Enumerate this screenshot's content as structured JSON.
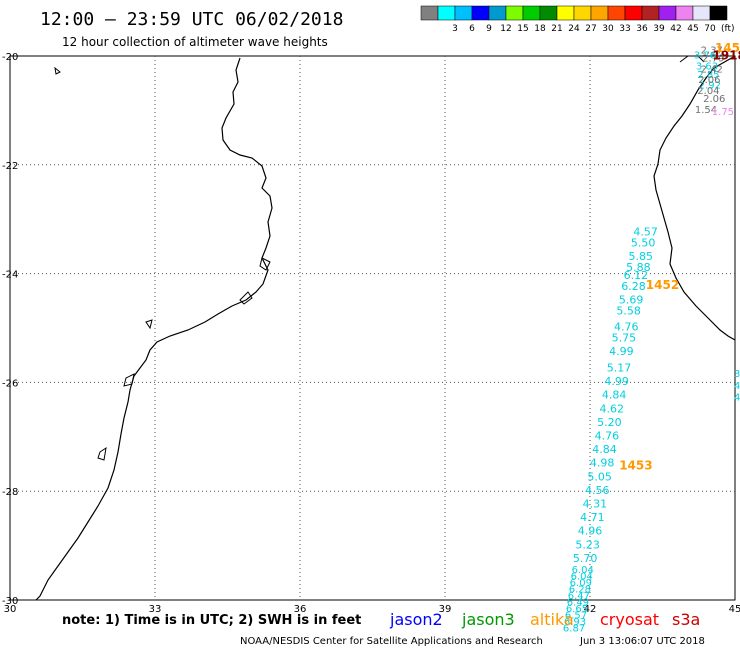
{
  "header": {
    "title": "12:00 – 23:59 UTC 06/02/2018",
    "subtitle": "12 hour collection of altimeter wave heights"
  },
  "colorbar": {
    "unit": "(ft)",
    "swatches": [
      {
        "color": "#808080",
        "label": ""
      },
      {
        "color": "#00ffff",
        "label": "3"
      },
      {
        "color": "#00bfff",
        "label": "6"
      },
      {
        "color": "#0000ff",
        "label": "9"
      },
      {
        "color": "#009acd",
        "label": "12"
      },
      {
        "color": "#7cfc00",
        "label": "15"
      },
      {
        "color": "#00cd00",
        "label": "18"
      },
      {
        "color": "#008b00",
        "label": "21"
      },
      {
        "color": "#ffff00",
        "label": "24"
      },
      {
        "color": "#ffd700",
        "label": "27"
      },
      {
        "color": "#ffa500",
        "label": "30"
      },
      {
        "color": "#ff4500",
        "label": "33"
      },
      {
        "color": "#ff0000",
        "label": "36"
      },
      {
        "color": "#b22222",
        "label": "39"
      },
      {
        "color": "#a020f0",
        "label": "42"
      },
      {
        "color": "#ee82ee",
        "label": "45"
      },
      {
        "color": "#e6e6fa",
        "label": "70"
      },
      {
        "color": "#000000",
        "label": ""
      }
    ]
  },
  "axes": {
    "lon_ticks": [
      "30",
      "33",
      "36",
      "39",
      "42",
      "45"
    ],
    "lat_ticks": [
      "-20",
      "-22",
      "-24",
      "-26",
      "-28",
      "-30"
    ]
  },
  "track_colors": {
    "cyan": "#00d0e0",
    "orange": "#ff9900",
    "gray": "#707070",
    "violet": "#ee82ee",
    "darkred": "#8b0000"
  },
  "tracks": {
    "s3a_south": [
      {
        "lon": 43.15,
        "lat": -23.3,
        "swh": "4.57"
      },
      {
        "lon": 43.1,
        "lat": -23.5,
        "swh": "5.50"
      },
      {
        "lon": 43.05,
        "lat": -23.75,
        "swh": "5.85"
      },
      {
        "lon": 43.0,
        "lat": -23.95,
        "swh": "5.88"
      },
      {
        "lon": 42.95,
        "lat": -24.1,
        "swh": "6.12"
      },
      {
        "lon": 42.9,
        "lat": -24.3,
        "swh": "6.28"
      },
      {
        "lon": 42.85,
        "lat": -24.55,
        "swh": "5.69"
      },
      {
        "lon": 42.8,
        "lat": -24.75,
        "swh": "5.58"
      },
      {
        "lon": 42.75,
        "lat": -25.05,
        "swh": "4.76"
      },
      {
        "lon": 42.7,
        "lat": -25.25,
        "swh": "5.75"
      },
      {
        "lon": 42.65,
        "lat": -25.5,
        "swh": "4.99"
      },
      {
        "lon": 42.6,
        "lat": -25.8,
        "swh": "5.17"
      },
      {
        "lon": 42.55,
        "lat": -26.05,
        "swh": "4.99"
      },
      {
        "lon": 42.5,
        "lat": -26.3,
        "swh": "4.84"
      },
      {
        "lon": 42.45,
        "lat": -26.55,
        "swh": "4.62"
      },
      {
        "lon": 42.4,
        "lat": -26.8,
        "swh": "5.20"
      },
      {
        "lon": 42.35,
        "lat": -27.05,
        "swh": "4.76"
      },
      {
        "lon": 42.3,
        "lat": -27.3,
        "swh": "4.84"
      },
      {
        "lon": 42.25,
        "lat": -27.55,
        "swh": "4.98"
      },
      {
        "lon": 42.2,
        "lat": -27.8,
        "swh": "5.05"
      },
      {
        "lon": 42.15,
        "lat": -28.05,
        "swh": "4.56"
      },
      {
        "lon": 42.1,
        "lat": -28.3,
        "swh": "4.31"
      },
      {
        "lon": 42.05,
        "lat": -28.55,
        "swh": "4.71"
      },
      {
        "lon": 42.0,
        "lat": -28.8,
        "swh": "4.96"
      },
      {
        "lon": 41.95,
        "lat": -29.05,
        "swh": "5.23"
      },
      {
        "lon": 41.9,
        "lat": -29.3,
        "swh": "5.70"
      }
    ],
    "s3a_dense": [
      {
        "lon": 41.85,
        "lat": -29.5,
        "swh": "6.04"
      },
      {
        "lon": 41.83,
        "lat": -29.62,
        "swh": "6.04"
      },
      {
        "lon": 41.81,
        "lat": -29.74,
        "swh": "6.09"
      },
      {
        "lon": 41.79,
        "lat": -29.86,
        "swh": "6.28"
      },
      {
        "lon": 41.77,
        "lat": -29.98,
        "swh": "6.47"
      },
      {
        "lon": 41.75,
        "lat": -30.1,
        "swh": "6.49"
      },
      {
        "lon": 41.73,
        "lat": -30.22,
        "swh": "6.65"
      },
      {
        "lon": 41.71,
        "lat": -30.34,
        "swh": "6.57"
      },
      {
        "lon": 41.69,
        "lat": -30.46,
        "swh": "6.93"
      },
      {
        "lon": 41.67,
        "lat": -30.58,
        "swh": "6.87"
      }
    ],
    "north_cyan": [
      {
        "lon": 44.38,
        "lat": -20.05,
        "swh": "3.76"
      },
      {
        "lon": 44.42,
        "lat": -20.25,
        "swh": "3.63"
      },
      {
        "lon": 44.45,
        "lat": -20.4,
        "swh": "2.85"
      },
      {
        "lon": 44.48,
        "lat": -20.6,
        "swh": "2.92"
      }
    ],
    "north_gray": [
      {
        "lon": 44.52,
        "lat": -19.95,
        "swh": "2.37"
      },
      {
        "lon": 44.55,
        "lat": -20.1,
        "swh": "2.79"
      },
      {
        "lon": 44.52,
        "lat": -20.3,
        "swh": "2.42"
      },
      {
        "lon": 44.47,
        "lat": -20.5,
        "swh": "2.06"
      },
      {
        "lon": 44.45,
        "lat": -20.7,
        "swh": "2.04"
      },
      {
        "lon": 44.57,
        "lat": -20.85,
        "swh": "2.06"
      },
      {
        "lon": 44.4,
        "lat": -21.05,
        "swh": "1.54"
      }
    ],
    "north_violet": [
      {
        "lon": 44.75,
        "lat": -21.08,
        "swh": "1.75"
      }
    ],
    "time_labels": [
      {
        "lon": 45.0,
        "lat": -19.93,
        "text": "145",
        "color_key": "orange"
      },
      {
        "lon": 44.88,
        "lat": -20.06,
        "text": "1918",
        "color_key": "darkred"
      },
      {
        "lon": 43.5,
        "lat": -24.28,
        "text": "1452",
        "color_key": "orange"
      },
      {
        "lon": 42.95,
        "lat": -27.6,
        "text": "1453",
        "color_key": "orange"
      }
    ],
    "edge_labels": [
      {
        "lon": 45.0,
        "lat": -25.9,
        "swh": "3"
      },
      {
        "lon": 45.0,
        "lat": -26.12,
        "swh": "4"
      },
      {
        "lon": 45.0,
        "lat": -26.33,
        "swh": "4"
      }
    ]
  },
  "footer": {
    "note": "note: 1) Time is in UTC; 2) SWH is in feet",
    "legend": [
      {
        "name": "jason2",
        "color": "#0000ff"
      },
      {
        "name": "jason3",
        "color": "#009900"
      },
      {
        "name": "altika",
        "color": "#ff9900"
      },
      {
        "name": "cryosat",
        "color": "#ff0000"
      },
      {
        "name": "s3a",
        "color": "#cc0000"
      }
    ],
    "credit": "NOAA/NESDIS Center for Satellite Applications and Research",
    "timestamp": "Jun  3 13:06:07 UTC 2018"
  }
}
